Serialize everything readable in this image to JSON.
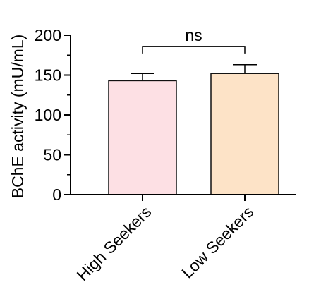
{
  "chart_data": {
    "type": "bar",
    "categories": [
      "High Seekers",
      "Low Seekers"
    ],
    "values": [
      143,
      152
    ],
    "errors": [
      9,
      11
    ],
    "colors": [
      "#fde0e4",
      "#fde3c7"
    ],
    "edge_color": "#111111",
    "ylabel": "BChE activity (mU/mL)",
    "ylim": [
      0,
      200
    ],
    "yticks": [
      0,
      50,
      100,
      150,
      200
    ],
    "yticks_labels": [
      "0",
      "50",
      "100",
      "150",
      "200"
    ],
    "minor_ticks": [
      25,
      75,
      125,
      175
    ],
    "annotation": {
      "label": "ns",
      "from": "High Seekers",
      "to": "Low Seekers",
      "level": 186
    },
    "grid": false,
    "legend": "none"
  }
}
